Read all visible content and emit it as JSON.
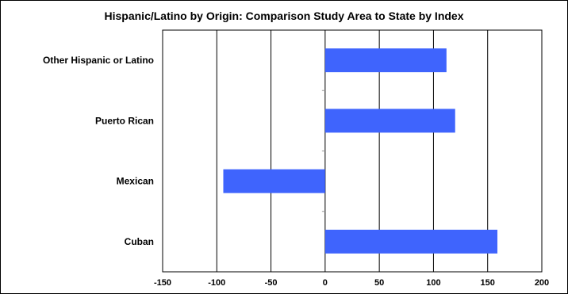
{
  "chart_data": {
    "type": "bar",
    "orientation": "horizontal",
    "title": "Hispanic/Latino by Origin: Comparison Study Area to State by Index",
    "xlabel": "",
    "ylabel": "",
    "categories": [
      "Other Hispanic or Latino",
      "Puerto Rican",
      "Mexican",
      "Cuban"
    ],
    "values": [
      112,
      120,
      -94,
      159
    ],
    "xlim": [
      -150,
      200
    ],
    "xticks": [
      -150,
      -100,
      -50,
      0,
      50,
      100,
      150,
      200
    ],
    "xtick_labels": [
      "-150",
      "-100",
      "-50",
      "0",
      "50",
      "100",
      "150",
      "200"
    ],
    "grid": "vertical",
    "legend": "none",
    "bar_color": "#3f64fd"
  }
}
